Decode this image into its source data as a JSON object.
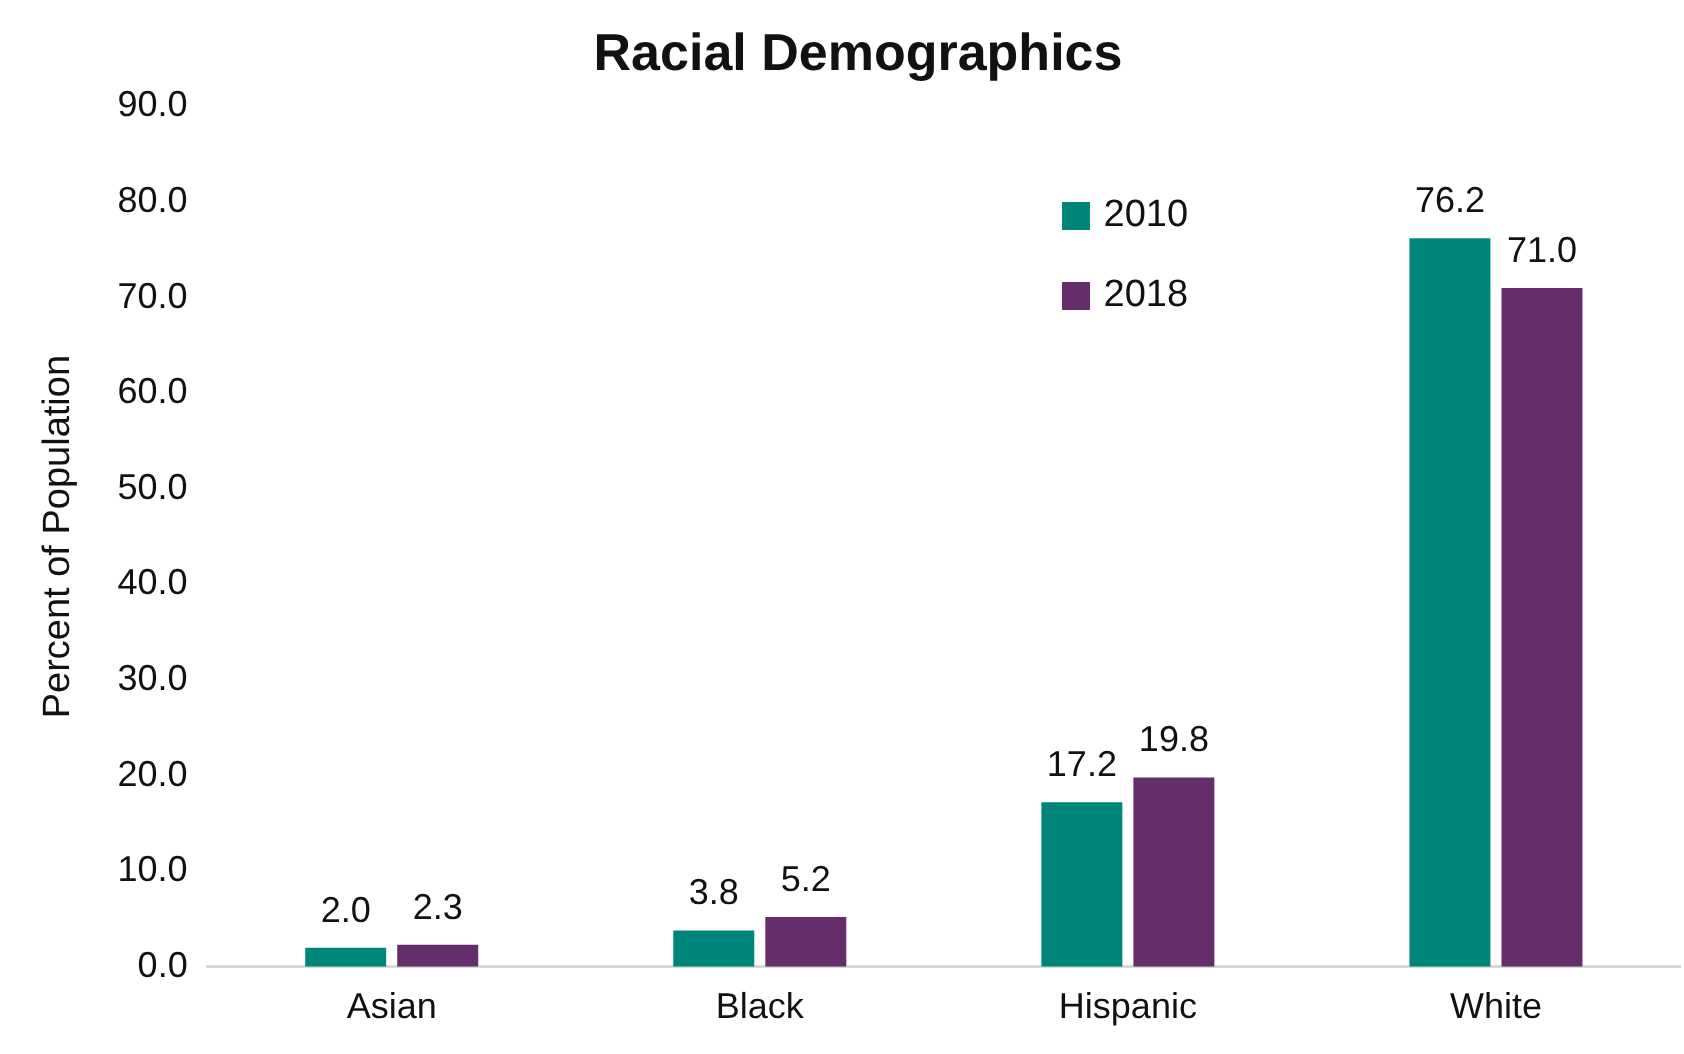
{
  "chart_data": {
    "type": "bar",
    "title": "Racial Demographics",
    "ylabel": "Percent of Population",
    "categories": [
      "Asian",
      "Black",
      "Hispanic",
      "White"
    ],
    "series": [
      {
        "name": "2010",
        "color": "#00857a",
        "values": [
          2.0,
          3.8,
          17.2,
          76.2
        ],
        "value_labels": [
          "2.0",
          "3.8",
          "17.2",
          "76.2"
        ]
      },
      {
        "name": "2018",
        "color": "#652d6b",
        "values": [
          2.3,
          5.2,
          19.8,
          71.0
        ],
        "value_labels": [
          "2.3",
          "5.2",
          "19.8",
          "71.0"
        ]
      }
    ],
    "ylim": [
      0,
      90
    ],
    "yticks": [
      {
        "value": 0,
        "label": "0.0"
      },
      {
        "value": 10,
        "label": "10.0"
      },
      {
        "value": 20,
        "label": "20.0"
      },
      {
        "value": 30,
        "label": "30.0"
      },
      {
        "value": 40,
        "label": "40.0"
      },
      {
        "value": 50,
        "label": "50.0"
      },
      {
        "value": 60,
        "label": "60.0"
      },
      {
        "value": 70,
        "label": "70.0"
      },
      {
        "value": 80,
        "label": "80.0"
      },
      {
        "value": 90,
        "label": "90.0"
      }
    ],
    "legend": "top right"
  }
}
